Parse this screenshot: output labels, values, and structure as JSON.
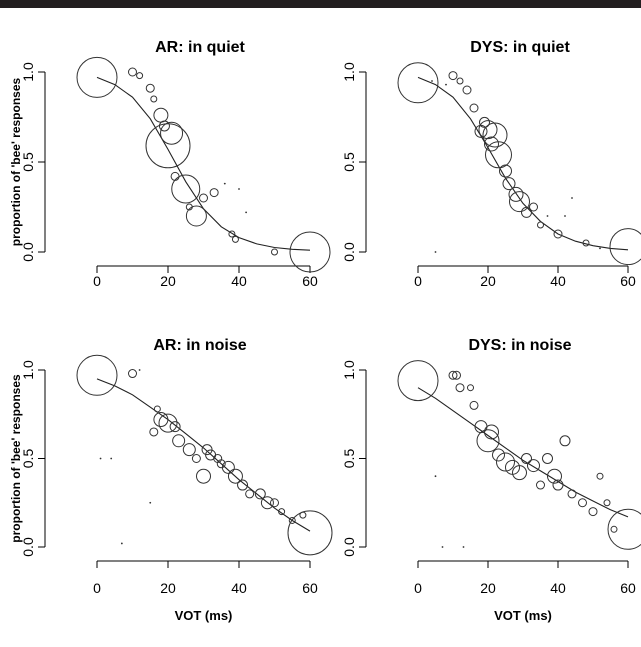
{
  "chart_data": [
    {
      "type": "scatter",
      "title": "AR: in quiet",
      "ylabel": "proportion of 'bee' responses",
      "xlabel": "",
      "xlim": [
        0,
        60
      ],
      "ylim": [
        0,
        1
      ],
      "xticks": [
        "0",
        "20",
        "40",
        "60"
      ],
      "yticks": [
        "0.0",
        "0.5",
        "1.0"
      ],
      "curve": [
        [
          0,
          0.97
        ],
        [
          5,
          0.93
        ],
        [
          10,
          0.86
        ],
        [
          15,
          0.74
        ],
        [
          20,
          0.57
        ],
        [
          25,
          0.39
        ],
        [
          30,
          0.24
        ],
        [
          35,
          0.14
        ],
        [
          40,
          0.08
        ],
        [
          45,
          0.045
        ],
        [
          50,
          0.025
        ],
        [
          55,
          0.015
        ],
        [
          60,
          0.01
        ]
      ],
      "points": [
        {
          "x": 0,
          "y": 0.97,
          "r": 20
        },
        {
          "x": 10,
          "y": 1.0,
          "r": 4
        },
        {
          "x": 12,
          "y": 0.98,
          "r": 3
        },
        {
          "x": 15,
          "y": 0.91,
          "r": 4
        },
        {
          "x": 16,
          "y": 0.85,
          "r": 3
        },
        {
          "x": 18,
          "y": 0.76,
          "r": 7
        },
        {
          "x": 19,
          "y": 0.7,
          "r": 5
        },
        {
          "x": 20,
          "y": 0.59,
          "r": 22
        },
        {
          "x": 21,
          "y": 0.66,
          "r": 11
        },
        {
          "x": 22,
          "y": 0.42,
          "r": 4
        },
        {
          "x": 25,
          "y": 0.35,
          "r": 14
        },
        {
          "x": 26,
          "y": 0.25,
          "r": 3
        },
        {
          "x": 28,
          "y": 0.2,
          "r": 10
        },
        {
          "x": 30,
          "y": 0.3,
          "r": 4
        },
        {
          "x": 33,
          "y": 0.33,
          "r": 4
        },
        {
          "x": 36,
          "y": 0.38,
          "r": 1
        },
        {
          "x": 38,
          "y": 0.1,
          "r": 3
        },
        {
          "x": 39,
          "y": 0.07,
          "r": 3
        },
        {
          "x": 40,
          "y": 0.35,
          "r": 1
        },
        {
          "x": 42,
          "y": 0.22,
          "r": 1
        },
        {
          "x": 50,
          "y": 0.0,
          "r": 3
        },
        {
          "x": 60,
          "y": 0.0,
          "r": 20
        }
      ]
    },
    {
      "type": "scatter",
      "title": "DYS: in quiet",
      "ylabel": "",
      "xlabel": "",
      "xlim": [
        0,
        60
      ],
      "ylim": [
        0,
        1
      ],
      "xticks": [
        "0",
        "20",
        "40",
        "60"
      ],
      "yticks": [
        "0.0",
        "0.5",
        "1.0"
      ],
      "curve": [
        [
          0,
          0.97
        ],
        [
          5,
          0.93
        ],
        [
          10,
          0.86
        ],
        [
          15,
          0.74
        ],
        [
          20,
          0.58
        ],
        [
          25,
          0.41
        ],
        [
          30,
          0.27
        ],
        [
          35,
          0.17
        ],
        [
          40,
          0.1
        ],
        [
          45,
          0.06
        ],
        [
          50,
          0.035
        ],
        [
          55,
          0.02
        ],
        [
          60,
          0.012
        ]
      ],
      "points": [
        {
          "x": 0,
          "y": 0.94,
          "r": 20
        },
        {
          "x": 4,
          "y": 0.95,
          "r": 1
        },
        {
          "x": 8,
          "y": 0.93,
          "r": 1
        },
        {
          "x": 10,
          "y": 0.98,
          "r": 4
        },
        {
          "x": 12,
          "y": 0.95,
          "r": 3
        },
        {
          "x": 14,
          "y": 0.9,
          "r": 4
        },
        {
          "x": 16,
          "y": 0.8,
          "r": 4
        },
        {
          "x": 18,
          "y": 0.67,
          "r": 6
        },
        {
          "x": 19,
          "y": 0.72,
          "r": 5
        },
        {
          "x": 20,
          "y": 0.68,
          "r": 9
        },
        {
          "x": 21,
          "y": 0.6,
          "r": 7
        },
        {
          "x": 22,
          "y": 0.65,
          "r": 12
        },
        {
          "x": 23,
          "y": 0.54,
          "r": 13
        },
        {
          "x": 25,
          "y": 0.45,
          "r": 6
        },
        {
          "x": 26,
          "y": 0.38,
          "r": 6
        },
        {
          "x": 28,
          "y": 0.32,
          "r": 7
        },
        {
          "x": 29,
          "y": 0.28,
          "r": 10
        },
        {
          "x": 31,
          "y": 0.22,
          "r": 5
        },
        {
          "x": 33,
          "y": 0.25,
          "r": 4
        },
        {
          "x": 35,
          "y": 0.15,
          "r": 3
        },
        {
          "x": 37,
          "y": 0.2,
          "r": 1
        },
        {
          "x": 40,
          "y": 0.1,
          "r": 4
        },
        {
          "x": 42,
          "y": 0.2,
          "r": 1
        },
        {
          "x": 44,
          "y": 0.3,
          "r": 1
        },
        {
          "x": 48,
          "y": 0.05,
          "r": 3
        },
        {
          "x": 52,
          "y": 0.02,
          "r": 1
        },
        {
          "x": 5,
          "y": 0.0,
          "r": 1
        },
        {
          "x": 60,
          "y": 0.03,
          "r": 18
        }
      ]
    },
    {
      "type": "scatter",
      "title": "AR: in noise",
      "ylabel": "proportion of 'bee' responses",
      "xlabel": "VOT (ms)",
      "xlim": [
        0,
        60
      ],
      "ylim": [
        0,
        1
      ],
      "xticks": [
        "0",
        "20",
        "40",
        "60"
      ],
      "yticks": [
        "0.0",
        "0.5",
        "1.0"
      ],
      "curve": [
        [
          0,
          0.95
        ],
        [
          5,
          0.91
        ],
        [
          10,
          0.86
        ],
        [
          15,
          0.79
        ],
        [
          20,
          0.72
        ],
        [
          25,
          0.64
        ],
        [
          30,
          0.56
        ],
        [
          35,
          0.47
        ],
        [
          40,
          0.38
        ],
        [
          45,
          0.3
        ],
        [
          50,
          0.22
        ],
        [
          55,
          0.15
        ],
        [
          60,
          0.09
        ]
      ],
      "points": [
        {
          "x": 0,
          "y": 0.97,
          "r": 20
        },
        {
          "x": 1,
          "y": 0.5,
          "r": 1
        },
        {
          "x": 4,
          "y": 0.5,
          "r": 1
        },
        {
          "x": 7,
          "y": 0.02,
          "r": 1
        },
        {
          "x": 10,
          "y": 0.98,
          "r": 4
        },
        {
          "x": 12,
          "y": 1.0,
          "r": 1
        },
        {
          "x": 15,
          "y": 0.25,
          "r": 1
        },
        {
          "x": 16,
          "y": 0.65,
          "r": 4
        },
        {
          "x": 17,
          "y": 0.78,
          "r": 3
        },
        {
          "x": 18,
          "y": 0.72,
          "r": 7
        },
        {
          "x": 20,
          "y": 0.7,
          "r": 9
        },
        {
          "x": 22,
          "y": 0.68,
          "r": 5
        },
        {
          "x": 23,
          "y": 0.6,
          "r": 6
        },
        {
          "x": 26,
          "y": 0.55,
          "r": 6
        },
        {
          "x": 28,
          "y": 0.5,
          "r": 4
        },
        {
          "x": 30,
          "y": 0.4,
          "r": 7
        },
        {
          "x": 31,
          "y": 0.55,
          "r": 5
        },
        {
          "x": 32,
          "y": 0.52,
          "r": 5
        },
        {
          "x": 34,
          "y": 0.5,
          "r": 4
        },
        {
          "x": 35,
          "y": 0.47,
          "r": 4
        },
        {
          "x": 37,
          "y": 0.45,
          "r": 6
        },
        {
          "x": 39,
          "y": 0.4,
          "r": 7
        },
        {
          "x": 41,
          "y": 0.35,
          "r": 5
        },
        {
          "x": 43,
          "y": 0.3,
          "r": 4
        },
        {
          "x": 46,
          "y": 0.3,
          "r": 5
        },
        {
          "x": 48,
          "y": 0.25,
          "r": 6
        },
        {
          "x": 50,
          "y": 0.25,
          "r": 4
        },
        {
          "x": 52,
          "y": 0.2,
          "r": 3
        },
        {
          "x": 55,
          "y": 0.15,
          "r": 3
        },
        {
          "x": 58,
          "y": 0.18,
          "r": 3
        },
        {
          "x": 60,
          "y": 0.08,
          "r": 22
        }
      ]
    },
    {
      "type": "scatter",
      "title": "DYS: in noise",
      "ylabel": "",
      "xlabel": "VOT (ms)",
      "xlim": [
        0,
        60
      ],
      "ylim": [
        0,
        1
      ],
      "xticks": [
        "0",
        "20",
        "40",
        "60"
      ],
      "yticks": [
        "0.0",
        "0.5",
        "1.0"
      ],
      "curve": [
        [
          0,
          0.9
        ],
        [
          5,
          0.84
        ],
        [
          10,
          0.77
        ],
        [
          15,
          0.7
        ],
        [
          20,
          0.63
        ],
        [
          25,
          0.56
        ],
        [
          30,
          0.49
        ],
        [
          35,
          0.43
        ],
        [
          40,
          0.37
        ],
        [
          45,
          0.31
        ],
        [
          50,
          0.26
        ],
        [
          55,
          0.21
        ],
        [
          60,
          0.17
        ]
      ],
      "points": [
        {
          "x": 0,
          "y": 0.94,
          "r": 20
        },
        {
          "x": 5,
          "y": 0.4,
          "r": 1
        },
        {
          "x": 7,
          "y": 0.0,
          "r": 1
        },
        {
          "x": 10,
          "y": 0.97,
          "r": 4
        },
        {
          "x": 11,
          "y": 0.97,
          "r": 4
        },
        {
          "x": 12,
          "y": 0.9,
          "r": 4
        },
        {
          "x": 13,
          "y": 0.0,
          "r": 1
        },
        {
          "x": 15,
          "y": 0.9,
          "r": 3
        },
        {
          "x": 16,
          "y": 0.8,
          "r": 4
        },
        {
          "x": 18,
          "y": 0.68,
          "r": 6
        },
        {
          "x": 20,
          "y": 0.6,
          "r": 11
        },
        {
          "x": 21,
          "y": 0.65,
          "r": 7
        },
        {
          "x": 23,
          "y": 0.52,
          "r": 6
        },
        {
          "x": 25,
          "y": 0.48,
          "r": 9
        },
        {
          "x": 27,
          "y": 0.45,
          "r": 7
        },
        {
          "x": 29,
          "y": 0.42,
          "r": 7
        },
        {
          "x": 31,
          "y": 0.5,
          "r": 5
        },
        {
          "x": 33,
          "y": 0.46,
          "r": 6
        },
        {
          "x": 35,
          "y": 0.35,
          "r": 4
        },
        {
          "x": 37,
          "y": 0.5,
          "r": 5
        },
        {
          "x": 39,
          "y": 0.4,
          "r": 7
        },
        {
          "x": 40,
          "y": 0.35,
          "r": 5
        },
        {
          "x": 42,
          "y": 0.6,
          "r": 5
        },
        {
          "x": 44,
          "y": 0.3,
          "r": 4
        },
        {
          "x": 47,
          "y": 0.25,
          "r": 4
        },
        {
          "x": 50,
          "y": 0.2,
          "r": 4
        },
        {
          "x": 52,
          "y": 0.4,
          "r": 3
        },
        {
          "x": 54,
          "y": 0.25,
          "r": 3
        },
        {
          "x": 56,
          "y": 0.1,
          "r": 3
        },
        {
          "x": 60,
          "y": 0.1,
          "r": 20
        }
      ]
    }
  ]
}
